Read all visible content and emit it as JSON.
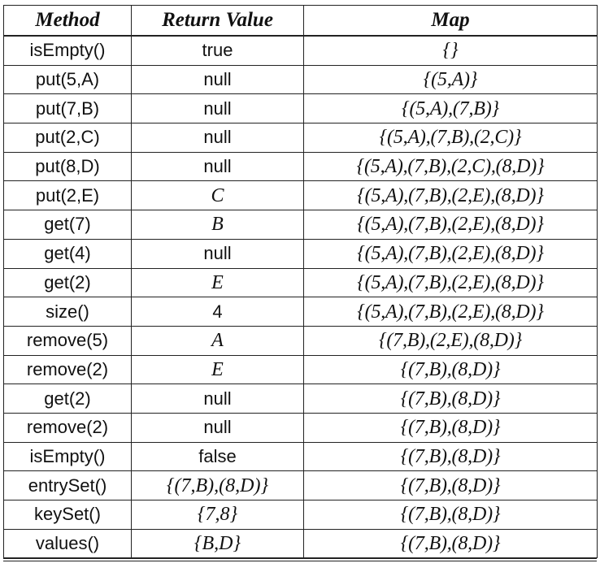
{
  "table": {
    "headers": {
      "method": "Method",
      "return_value": "Return Value",
      "map": "Map"
    },
    "rows": [
      {
        "method": "isEmpty()",
        "return_value": "true",
        "map": "{}"
      },
      {
        "method": "put(5,A)",
        "return_value": "null",
        "map": "{(5,A)}"
      },
      {
        "method": "put(7,B)",
        "return_value": "null",
        "map": "{(5,A),(7,B)}"
      },
      {
        "method": "put(2,C)",
        "return_value": "null",
        "map": "{(5,A),(7,B),(2,C)}"
      },
      {
        "method": "put(8,D)",
        "return_value": "null",
        "map": "{(5,A),(7,B),(2,C),(8,D)}"
      },
      {
        "method": "put(2,E)",
        "return_value": "C",
        "map": "{(5,A),(7,B),(2,E),(8,D)}"
      },
      {
        "method": "get(7)",
        "return_value": "B",
        "map": "{(5,A),(7,B),(2,E),(8,D)}"
      },
      {
        "method": "get(4)",
        "return_value": "null",
        "map": "{(5,A),(7,B),(2,E),(8,D)}"
      },
      {
        "method": "get(2)",
        "return_value": "E",
        "map": "{(5,A),(7,B),(2,E),(8,D)}"
      },
      {
        "method": "size()",
        "return_value": "4",
        "map": "{(5,A),(7,B),(2,E),(8,D)}"
      },
      {
        "method": "remove(5)",
        "return_value": "A",
        "map": "{(7,B),(2,E),(8,D)}"
      },
      {
        "method": "remove(2)",
        "return_value": "E",
        "map": "{(7,B),(8,D)}"
      },
      {
        "method": "get(2)",
        "return_value": "null",
        "map": "{(7,B),(8,D)}"
      },
      {
        "method": "remove(2)",
        "return_value": "null",
        "map": "{(7,B),(8,D)}"
      },
      {
        "method": "isEmpty()",
        "return_value": "false",
        "map": "{(7,B),(8,D)}"
      },
      {
        "method": "entrySet()",
        "return_value": "{(7,B),(8,D)}",
        "map": "{(7,B),(8,D)}"
      },
      {
        "method": "keySet()",
        "return_value": "{7,8}",
        "map": "{(7,B),(8,D)}"
      },
      {
        "method": "values()",
        "return_value": "{B,D}",
        "map": "{(7,B),(8,D)}"
      }
    ]
  }
}
